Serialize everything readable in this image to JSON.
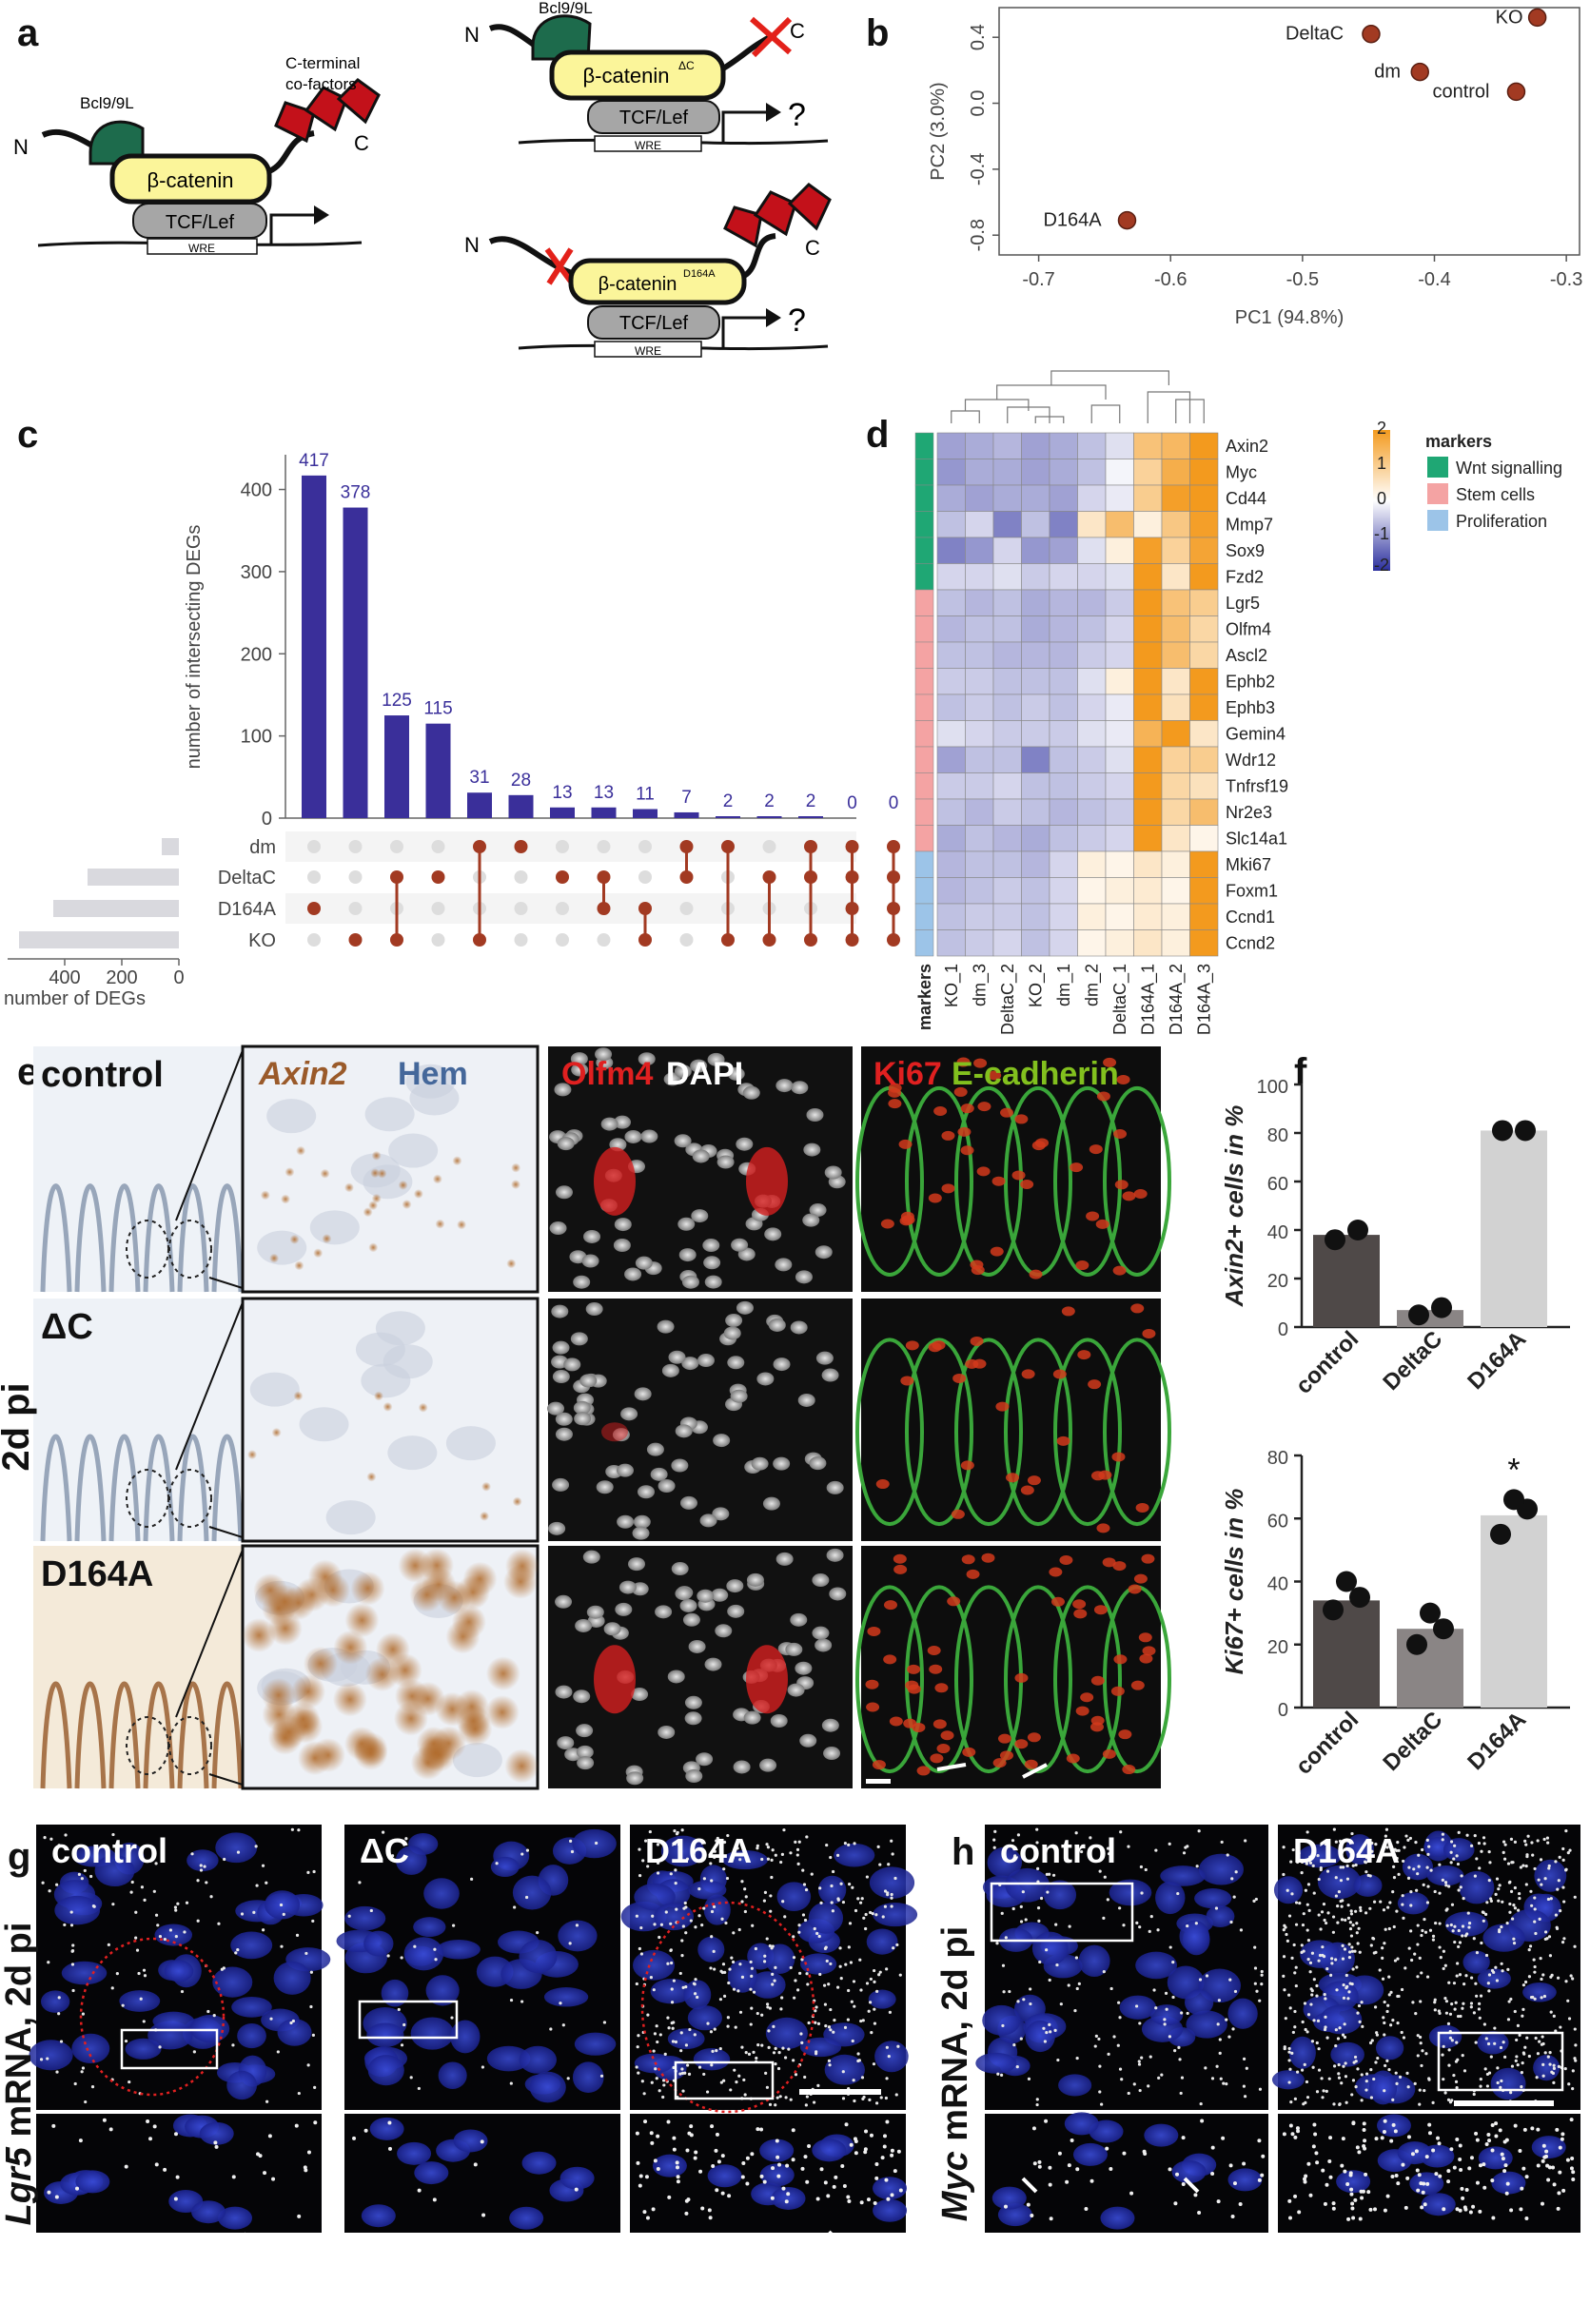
{
  "panel_letters": {
    "a": "a",
    "b": "b",
    "c": "c",
    "d": "d",
    "e": "e",
    "f": "f",
    "g": "g",
    "h": "h"
  },
  "panel_a": {
    "bcl_label": "Bcl9/9L",
    "cterm_label_1": "C-terminal",
    "cterm_label_2": "co-factors",
    "n_label": "N",
    "c_label": "C",
    "bcat_label": "β-catenin",
    "bcat_dc_label": "β-catenin",
    "bcat_dc_sup": "ΔC",
    "bcat_d164a_label": "β-catenin",
    "bcat_d164a_sup": "D164A",
    "tcf_label": "TCF/Lef",
    "wre_label": "WRE",
    "question": "?"
  },
  "chart_data": [
    {
      "type": "scatter",
      "id": "pca",
      "xlabel": "PC1 (94.8%)",
      "ylabel": "PC2 (3.0%)",
      "xlim": [
        -0.73,
        -0.29
      ],
      "ylim": [
        -0.92,
        0.58
      ],
      "xticks": [
        "-0.7",
        "-0.6",
        "-0.5",
        "-0.4",
        "-0.3"
      ],
      "xtick_values": [
        -0.7,
        -0.6,
        -0.5,
        -0.4,
        -0.3
      ],
      "yticks": [
        "-0.8",
        "-0.4",
        "0.0",
        "0.2",
        "0.4"
      ],
      "ytick_values": [
        -0.8,
        -0.4,
        0.0,
        0.2,
        0.4
      ],
      "points": [
        {
          "label": "KO",
          "x": -0.322,
          "y": 0.52
        },
        {
          "label": "DeltaC",
          "x": -0.448,
          "y": 0.42
        },
        {
          "label": "dm",
          "x": -0.411,
          "y": 0.19
        },
        {
          "label": "control",
          "x": -0.338,
          "y": 0.07
        },
        {
          "label": "D164A",
          "x": -0.633,
          "y": -0.71
        }
      ],
      "point_color": "#a23a22"
    },
    {
      "type": "bar",
      "id": "upset",
      "ylabel": "number of intersecting DEGs",
      "yticks": [
        "0",
        "100",
        "200",
        "300",
        "400"
      ],
      "ytick_values": [
        0,
        100,
        200,
        300,
        400
      ],
      "ylim": [
        0,
        440
      ],
      "values": [
        417,
        378,
        125,
        115,
        31,
        28,
        13,
        13,
        11,
        7,
        2,
        2,
        2,
        0,
        0
      ],
      "value_labels": [
        "417",
        "378",
        "125",
        "115",
        "31",
        "28",
        "13",
        "13",
        "11",
        "7",
        "2",
        "2",
        "2",
        "0",
        "0"
      ],
      "sets": [
        "dm",
        "DeltaC",
        "D164A",
        "KO"
      ],
      "set_sizes": [
        60,
        320,
        440,
        560
      ],
      "set_axis_label": "number of DEGs",
      "set_ticks": [
        "400",
        "200",
        "0"
      ],
      "set_tick_values": [
        400,
        200,
        0
      ],
      "membership": [
        [
          2
        ],
        [
          3
        ],
        [
          1,
          3
        ],
        [
          1
        ],
        [
          0,
          3
        ],
        [
          0
        ],
        [
          1
        ],
        [
          1,
          2
        ],
        [
          2,
          3
        ],
        [
          0,
          1
        ],
        [
          0,
          3
        ],
        [
          1,
          3
        ],
        [
          0,
          1,
          3
        ],
        [
          0,
          1,
          2,
          3
        ],
        [
          0,
          1,
          2,
          3
        ]
      ],
      "bar_color": "#3a2f9a",
      "dot_color": "#a23a22"
    },
    {
      "type": "heatmap",
      "id": "heatmap",
      "columns": [
        "KO_1",
        "dm_3",
        "DeltaC_2",
        "KO_2",
        "dm_1",
        "dm_2",
        "DeltaC_1",
        "D164A_1",
        "D164A_2",
        "D164A_3"
      ],
      "rows": [
        "Axin2",
        "Myc",
        "Cd44",
        "Mmp7",
        "Sox9",
        "Fzd2",
        "Lgr5",
        "Olfm4",
        "Ascl2",
        "Ephb2",
        "Ephb3",
        "Gemin4",
        "Wdr12",
        "Tnfrsf19",
        "Nr2e3",
        "Slc14a1",
        "Mki67",
        "Foxm1",
        "Ccnd1",
        "Ccnd2"
      ],
      "row_markers": [
        0,
        0,
        0,
        0,
        0,
        0,
        1,
        1,
        1,
        1,
        1,
        1,
        1,
        1,
        1,
        1,
        2,
        2,
        2,
        2
      ],
      "values": [
        [
          -0.9,
          -0.8,
          -0.7,
          -0.9,
          -0.8,
          -0.6,
          -0.3,
          1.2,
          1.4,
          2.0
        ],
        [
          -1.0,
          -0.8,
          -0.8,
          -0.9,
          -0.8,
          -0.6,
          -0.1,
          0.9,
          1.6,
          2.0
        ],
        [
          -0.8,
          -0.9,
          -0.8,
          -0.8,
          -0.9,
          -0.4,
          -0.2,
          1.0,
          1.9,
          2.0
        ],
        [
          -0.6,
          -0.4,
          -1.2,
          -0.6,
          -1.2,
          0.5,
          1.3,
          0.3,
          1.1,
          1.9
        ],
        [
          -1.2,
          -1.0,
          -0.4,
          -1.0,
          -0.9,
          -0.3,
          0.3,
          1.9,
          0.9,
          1.8
        ],
        [
          -0.4,
          -0.4,
          -0.3,
          -0.5,
          -0.4,
          -0.4,
          -0.3,
          2.0,
          0.5,
          2.0
        ],
        [
          -0.6,
          -0.7,
          -0.6,
          -0.8,
          -0.7,
          -0.7,
          -0.5,
          2.0,
          1.2,
          1.0
        ],
        [
          -0.7,
          -0.6,
          -0.6,
          -0.8,
          -0.7,
          -0.6,
          -0.4,
          2.0,
          1.3,
          0.8
        ],
        [
          -0.6,
          -0.6,
          -0.7,
          -0.7,
          -0.7,
          -0.5,
          -0.4,
          2.0,
          1.3,
          0.8
        ],
        [
          -0.5,
          -0.5,
          -0.6,
          -0.6,
          -0.6,
          -0.3,
          0.3,
          2.0,
          0.5,
          2.0
        ],
        [
          -0.6,
          -0.5,
          -0.6,
          -0.5,
          -0.6,
          -0.4,
          -0.2,
          2.0,
          0.6,
          2.0
        ],
        [
          -0.3,
          -0.4,
          -0.5,
          -0.5,
          -0.5,
          -0.3,
          -0.2,
          1.5,
          2.0,
          0.5
        ],
        [
          -0.9,
          -0.6,
          -0.6,
          -1.2,
          -0.6,
          -0.5,
          -0.3,
          2.0,
          0.9,
          1.0
        ],
        [
          -0.5,
          -0.5,
          -0.4,
          -0.6,
          -0.6,
          -0.5,
          -0.4,
          2.0,
          0.8,
          0.6
        ],
        [
          -0.6,
          -0.7,
          -0.5,
          -0.6,
          -0.7,
          -0.6,
          -0.5,
          2.0,
          0.8,
          1.3
        ],
        [
          -0.8,
          -0.6,
          -0.7,
          -0.8,
          -0.6,
          -0.5,
          -0.4,
          2.0,
          0.5,
          0.2
        ],
        [
          -0.7,
          -0.6,
          -0.6,
          -0.7,
          -0.4,
          0.3,
          0.2,
          0.5,
          0.3,
          2.0
        ],
        [
          -0.7,
          -0.6,
          -0.5,
          -0.6,
          -0.4,
          0.2,
          0.3,
          0.4,
          0.2,
          2.0
        ],
        [
          -0.6,
          -0.5,
          -0.5,
          -0.6,
          -0.4,
          0.3,
          0.2,
          0.4,
          0.3,
          2.0
        ],
        [
          -0.6,
          -0.5,
          -0.4,
          -0.6,
          -0.4,
          0.2,
          0.3,
          0.5,
          0.3,
          2.0
        ]
      ],
      "markers_label": "markers",
      "legend_title": "markers",
      "legend": [
        {
          "name": "Wnt signalling",
          "color": "#1fa774"
        },
        {
          "name": "Stem cells",
          "color": "#f4a3a3"
        },
        {
          "name": "Proliferation",
          "color": "#9cc4e8"
        }
      ],
      "colorbar_ticks": [
        "2",
        "1",
        "0",
        "-1",
        "-2"
      ],
      "colorbar_tick_values": [
        2,
        1,
        0,
        -1,
        -2
      ],
      "colorbar_colors": {
        "high": "#f39a1e",
        "mid": "#ffffff",
        "low": "#2b2f9e"
      }
    },
    {
      "type": "bar",
      "id": "axin2",
      "ylabel": "Axin2+ cells in %",
      "categories": [
        "control",
        "DeltaC",
        "D164A"
      ],
      "values": [
        38,
        7,
        81
      ],
      "points": [
        [
          36,
          40
        ],
        [
          5,
          8
        ],
        [
          81,
          81
        ]
      ],
      "ylim": [
        0,
        100
      ],
      "yticks": [
        "0",
        "20",
        "40",
        "60",
        "80",
        "100"
      ],
      "ytick_values": [
        0,
        20,
        40,
        60,
        80,
        100
      ],
      "bar_colors": [
        "#4f4948",
        "#8a8585",
        "#d2d2d2"
      ]
    },
    {
      "type": "bar",
      "id": "ki67",
      "ylabel": "Ki67+ cells in %",
      "categories": [
        "control",
        "DeltaC",
        "D164A"
      ],
      "values": [
        34,
        25,
        61
      ],
      "points": [
        [
          31,
          35,
          40
        ],
        [
          20,
          25,
          30
        ],
        [
          55,
          63,
          66
        ]
      ],
      "ylim": [
        0,
        80
      ],
      "yticks": [
        "0",
        "20",
        "40",
        "60",
        "80"
      ],
      "ytick_values": [
        0,
        20,
        40,
        60,
        80
      ],
      "bar_colors": [
        "#4f4948",
        "#8a8585",
        "#d2d2d2"
      ],
      "annotation": "*"
    }
  ],
  "panel_e": {
    "row_labels": [
      "control",
      "ΔC",
      "D164A"
    ],
    "side_label": "2d pi",
    "col1_a": "Axin2",
    "col1_b": "Hem",
    "col2_a": "Olfm4",
    "col2_b": "DAPI",
    "col3_a": "Ki67",
    "col3_b": "E-cadherin"
  },
  "panel_g": {
    "side_label_gene": "Lgr5",
    "side_label_rest": "mRNA, 2d pi",
    "labels": [
      "control",
      "ΔC",
      "D164A"
    ]
  },
  "panel_h": {
    "side_label_gene": "Myc",
    "side_label_rest": "mRNA, 2d pi",
    "labels": [
      "control",
      "D164A"
    ]
  }
}
